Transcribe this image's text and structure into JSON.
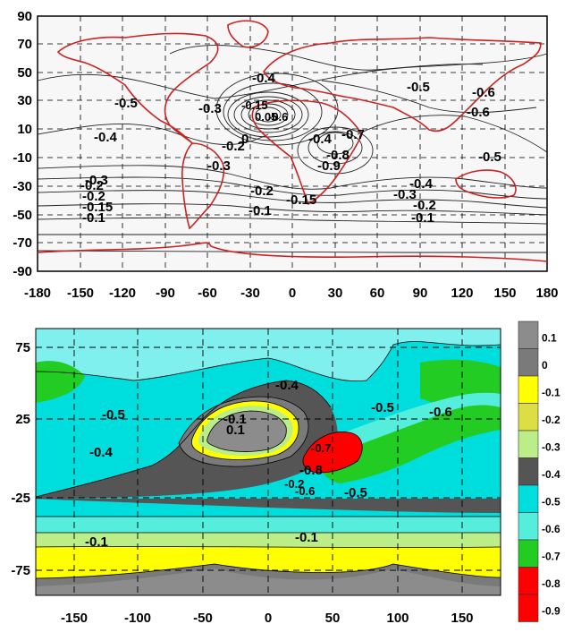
{
  "top_map": {
    "y_ticks": [
      "90",
      "70",
      "50",
      "30",
      "10",
      "-10",
      "-30",
      "-50",
      "-70",
      "-90"
    ],
    "x_ticks": [
      "-180",
      "-150",
      "-120",
      "-90",
      "-60",
      "-30",
      "0",
      "30",
      "60",
      "90",
      "120",
      "150",
      "180"
    ],
    "contour_labels": [
      "-0.4",
      "-0.5",
      "-0.3",
      "-0.15",
      "0.05",
      "-0.6",
      "-0.2",
      "0",
      "-0.4",
      "-0.7",
      "-0.8",
      "-0.9",
      "-0.6",
      "-0.5",
      "-0.4",
      "-0.5",
      "-0.3",
      "-0.2",
      "-0.15",
      "-0.1",
      "-0.2",
      "-0.1",
      "-0.15",
      "-0.3",
      "-0.2",
      "-0.4",
      "-0.1",
      "-0.3",
      "-0.2",
      "-0.6"
    ]
  },
  "bottom_map": {
    "y_ticks": [
      "75",
      "25",
      "-25",
      "-75"
    ],
    "x_ticks": [
      "-150",
      "-100",
      "-50",
      "0",
      "50",
      "100",
      "150"
    ],
    "contour_labels": [
      "-0.4",
      "-0.5",
      "-0.6",
      "-0.5",
      "-0.4",
      "-0.1",
      "0.1",
      "-0.7",
      "-0.8",
      "-0.2",
      "-0.6",
      "-0.5",
      "-0.1",
      "-0.1"
    ],
    "colorbar": {
      "labels": [
        "0.1",
        "0",
        "-0.1",
        "-0.2",
        "-0.3",
        "-0.4",
        "-0.5",
        "-0.6",
        "-0.7",
        "-0.8",
        "-0.9"
      ],
      "colors": [
        "#8c8c8c",
        "#7a7a7a",
        "#ffff00",
        "#dddd44",
        "#bbee88",
        "#555555",
        "#00dddd",
        "#55eedd",
        "#22cc22",
        "#ff0000",
        "#ff0000"
      ]
    }
  }
}
